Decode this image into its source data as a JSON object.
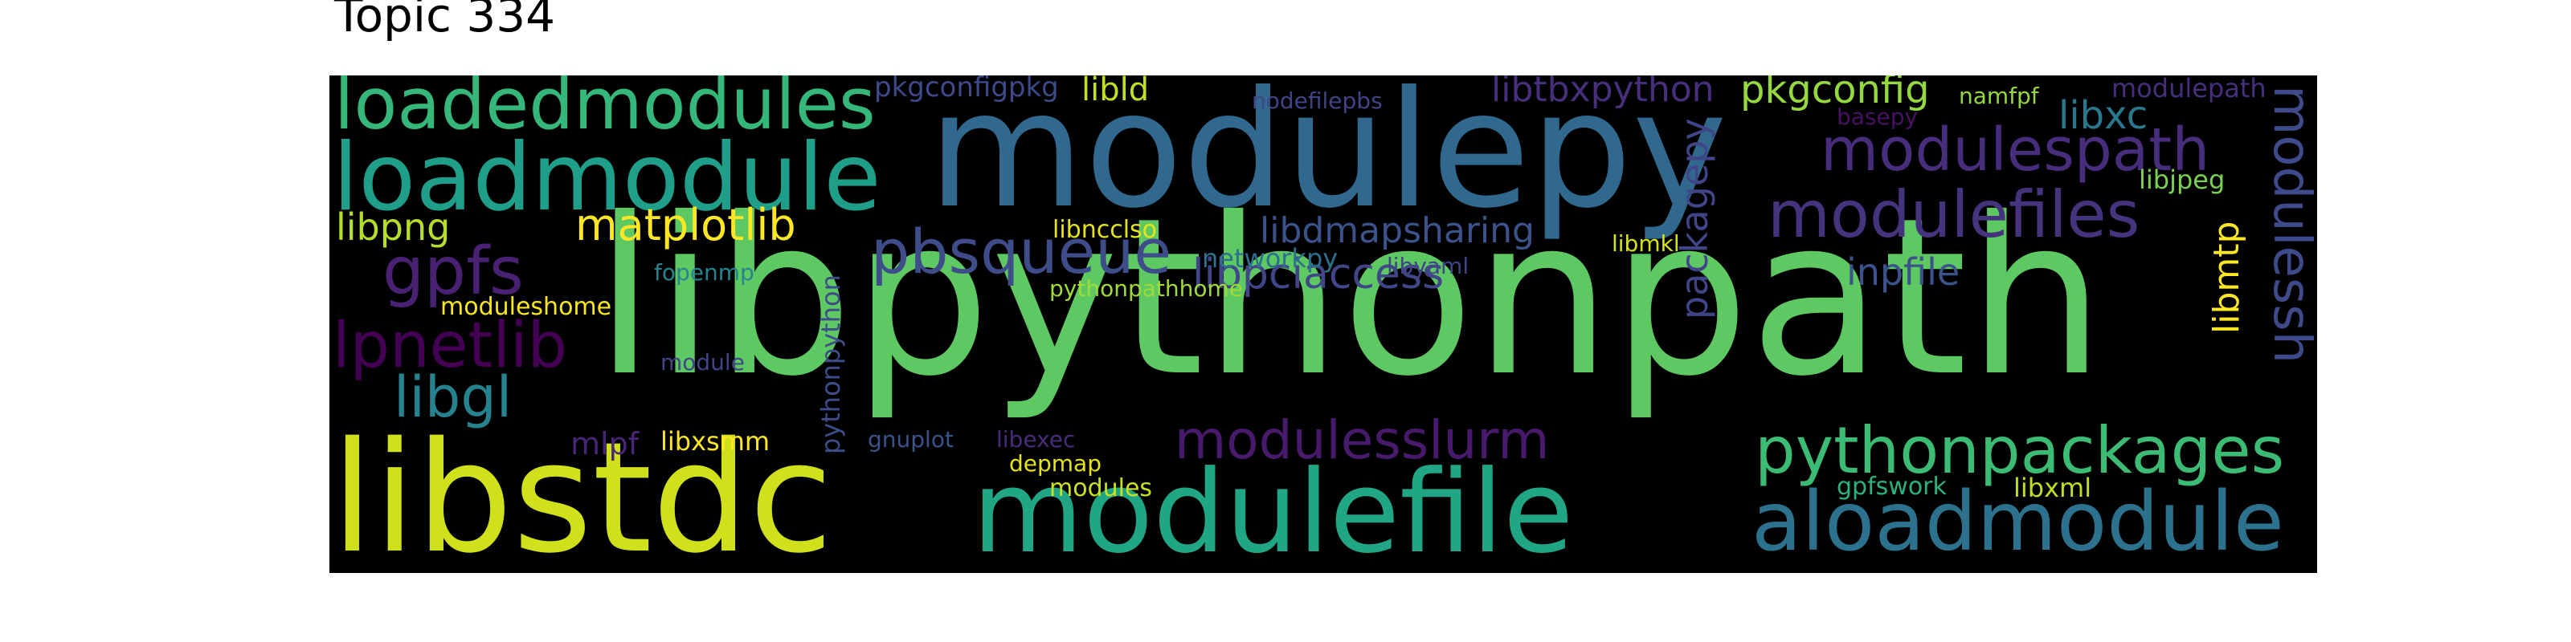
{
  "title": "Topic 334",
  "words": [
    {
      "text": "libpythonpath",
      "color": "#5ec962"
    },
    {
      "text": "modulepy",
      "color": "#31688e"
    },
    {
      "text": "libstdc",
      "color": "#d0e11c"
    },
    {
      "text": "modulefile",
      "color": "#21a685"
    },
    {
      "text": "loadmodule",
      "color": "#1f9e89"
    },
    {
      "text": "loadedmodules",
      "color": "#35b779"
    },
    {
      "text": "aloadmodule",
      "color": "#2c728e"
    },
    {
      "text": "pythonpackages",
      "color": "#3cbb75"
    },
    {
      "text": "modulefiles",
      "color": "#46337e"
    },
    {
      "text": "modulespath",
      "color": "#472d7b"
    },
    {
      "text": "modulessh",
      "color": "#3e4a89"
    },
    {
      "text": "pbsqueue",
      "color": "#3e4c8a"
    },
    {
      "text": "gpfs",
      "color": "#482173"
    },
    {
      "text": "lpnetlib",
      "color": "#440154"
    },
    {
      "text": "libgl",
      "color": "#26828e"
    },
    {
      "text": "modulesslurm",
      "color": "#481a6c"
    },
    {
      "text": "matplotlib",
      "color": "#fde725"
    },
    {
      "text": "libpciaccess",
      "color": "#404688"
    },
    {
      "text": "libdmapsharing",
      "color": "#3b528b"
    },
    {
      "text": "pkgconfig",
      "color": "#95d840"
    },
    {
      "text": "libtbxpython",
      "color": "#472f7d"
    },
    {
      "text": "inpfile",
      "color": "#3b528b"
    },
    {
      "text": "libxc",
      "color": "#2a788e"
    },
    {
      "text": "libpng",
      "color": "#b5de2b"
    },
    {
      "text": "libld",
      "color": "#c2df23"
    },
    {
      "text": "pkgconfigpkg",
      "color": "#3e4989"
    },
    {
      "text": "packagepy",
      "color": "#404588"
    },
    {
      "text": "libmtp",
      "color": "#fde725"
    },
    {
      "text": "moduleshome",
      "color": "#f8e621"
    },
    {
      "text": "fopenmp",
      "color": "#25848e"
    },
    {
      "text": "networkpy",
      "color": "#2d708e"
    },
    {
      "text": "libncclso",
      "color": "#e5e419"
    },
    {
      "text": "pythonpathhome",
      "color": "#a0da39"
    },
    {
      "text": "nodefilepbs",
      "color": "#414487"
    },
    {
      "text": "mlpf",
      "color": "#482576"
    },
    {
      "text": "libxsmm",
      "color": "#fde725"
    },
    {
      "text": "gnuplot",
      "color": "#3b528b"
    },
    {
      "text": "libexec",
      "color": "#472c7a"
    },
    {
      "text": "depmap",
      "color": "#e5e419"
    },
    {
      "text": "modules",
      "color": "#cae11f"
    },
    {
      "text": "pythonpython",
      "color": "#3e4c8a"
    },
    {
      "text": "module",
      "color": "#414487"
    },
    {
      "text": "libyaml",
      "color": "#404588"
    },
    {
      "text": "libmkl",
      "color": "#d8e219"
    },
    {
      "text": "libjpeg",
      "color": "#7ad151"
    },
    {
      "text": "modulepath",
      "color": "#46307e"
    },
    {
      "text": "basepy",
      "color": "#471164"
    },
    {
      "text": "namfpf",
      "color": "#95d840"
    },
    {
      "text": "gpfswork",
      "color": "#2db27d"
    },
    {
      "text": "libxml",
      "color": "#bddf26"
    }
  ]
}
